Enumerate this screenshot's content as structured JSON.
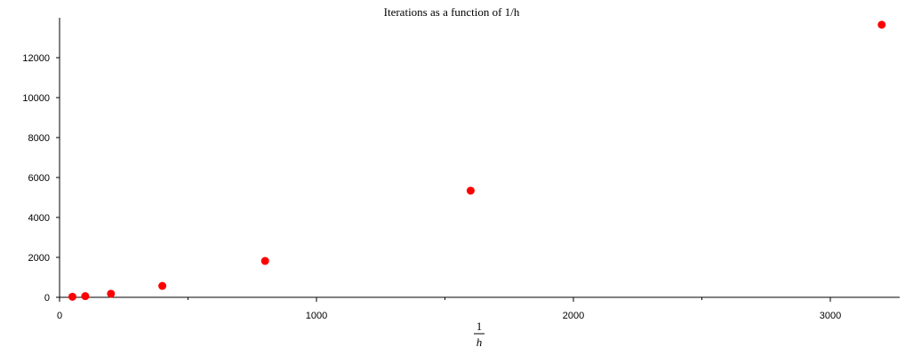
{
  "chart_data": {
    "type": "scatter",
    "title": "Iterations as a function of 1/h",
    "xlabel_numerator": "1",
    "xlabel_denominator": "h",
    "ylabel": "",
    "xlim": [
      0,
      3270
    ],
    "ylim": [
      0,
      14000
    ],
    "x_ticks": [
      0,
      1000,
      2000,
      3000
    ],
    "x_tick_labels": [
      "0",
      "1000",
      "2000",
      "3000"
    ],
    "x_minor_ticks": [
      500,
      1500,
      2500
    ],
    "y_ticks": [
      0,
      2000,
      4000,
      6000,
      8000,
      10000,
      12000
    ],
    "y_tick_labels": [
      "0",
      "2000",
      "4000",
      "6000",
      "8000",
      "10000",
      "12000"
    ],
    "grid": false,
    "marker_color": "#ff0000",
    "series": [
      {
        "x": [
          50,
          100,
          200,
          400,
          800,
          1600,
          3200
        ],
        "y": [
          30,
          60,
          180,
          570,
          1820,
          5340,
          13650
        ]
      }
    ]
  }
}
